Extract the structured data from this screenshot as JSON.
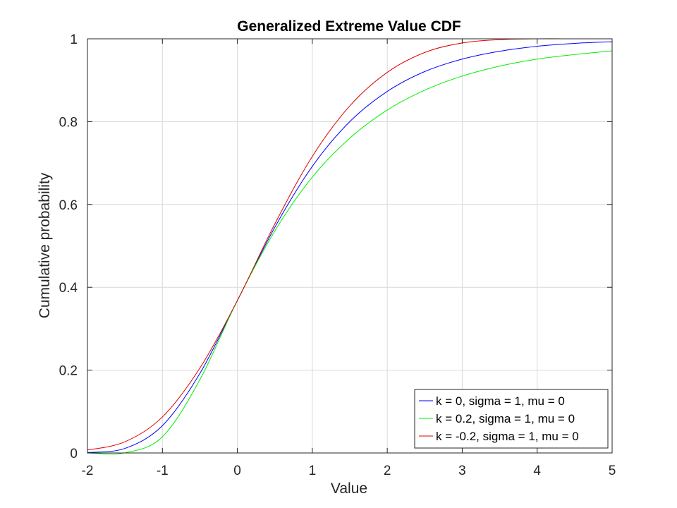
{
  "chart_data": {
    "type": "line",
    "title": "Generalized Extreme Value CDF",
    "xlabel": "Value",
    "ylabel": "Cumulative probability",
    "xlim": [
      -2,
      5
    ],
    "ylim": [
      0,
      1
    ],
    "xticks": [
      "-2",
      "-1",
      "0",
      "1",
      "2",
      "3",
      "4",
      "5"
    ],
    "yticks": [
      "0",
      "0.2",
      "0.4",
      "0.6",
      "0.8",
      "1"
    ],
    "grid": true,
    "legend_position": "bottom-right",
    "x": [
      -2,
      -1.5,
      -1,
      -0.5,
      0,
      0.5,
      1,
      1.5,
      2,
      2.5,
      3,
      3.5,
      4,
      4.5,
      5
    ],
    "series": [
      {
        "name": "k = 0, sigma = 1, mu = 0",
        "color": "#0000ff",
        "values": [
          0.001,
          0.011,
          0.066,
          0.192,
          0.368,
          0.545,
          0.692,
          0.8,
          0.873,
          0.921,
          0.951,
          0.97,
          0.982,
          0.989,
          0.993
        ]
      },
      {
        "name": "k = 0.2, sigma = 1, mu = 0",
        "color": "#00ee00",
        "values": [
          0.0,
          0.0003,
          0.039,
          0.177,
          0.368,
          0.536,
          0.666,
          0.76,
          0.828,
          0.876,
          0.91,
          0.934,
          0.951,
          0.962,
          0.971
        ]
      },
      {
        "name": "k = -0.2, sigma = 1, mu = 0",
        "color": "#dd0000",
        "values": [
          0.007,
          0.027,
          0.087,
          0.205,
          0.368,
          0.553,
          0.716,
          0.838,
          0.919,
          0.967,
          0.99,
          0.998,
          1.0,
          1.0,
          1.0
        ]
      }
    ]
  }
}
